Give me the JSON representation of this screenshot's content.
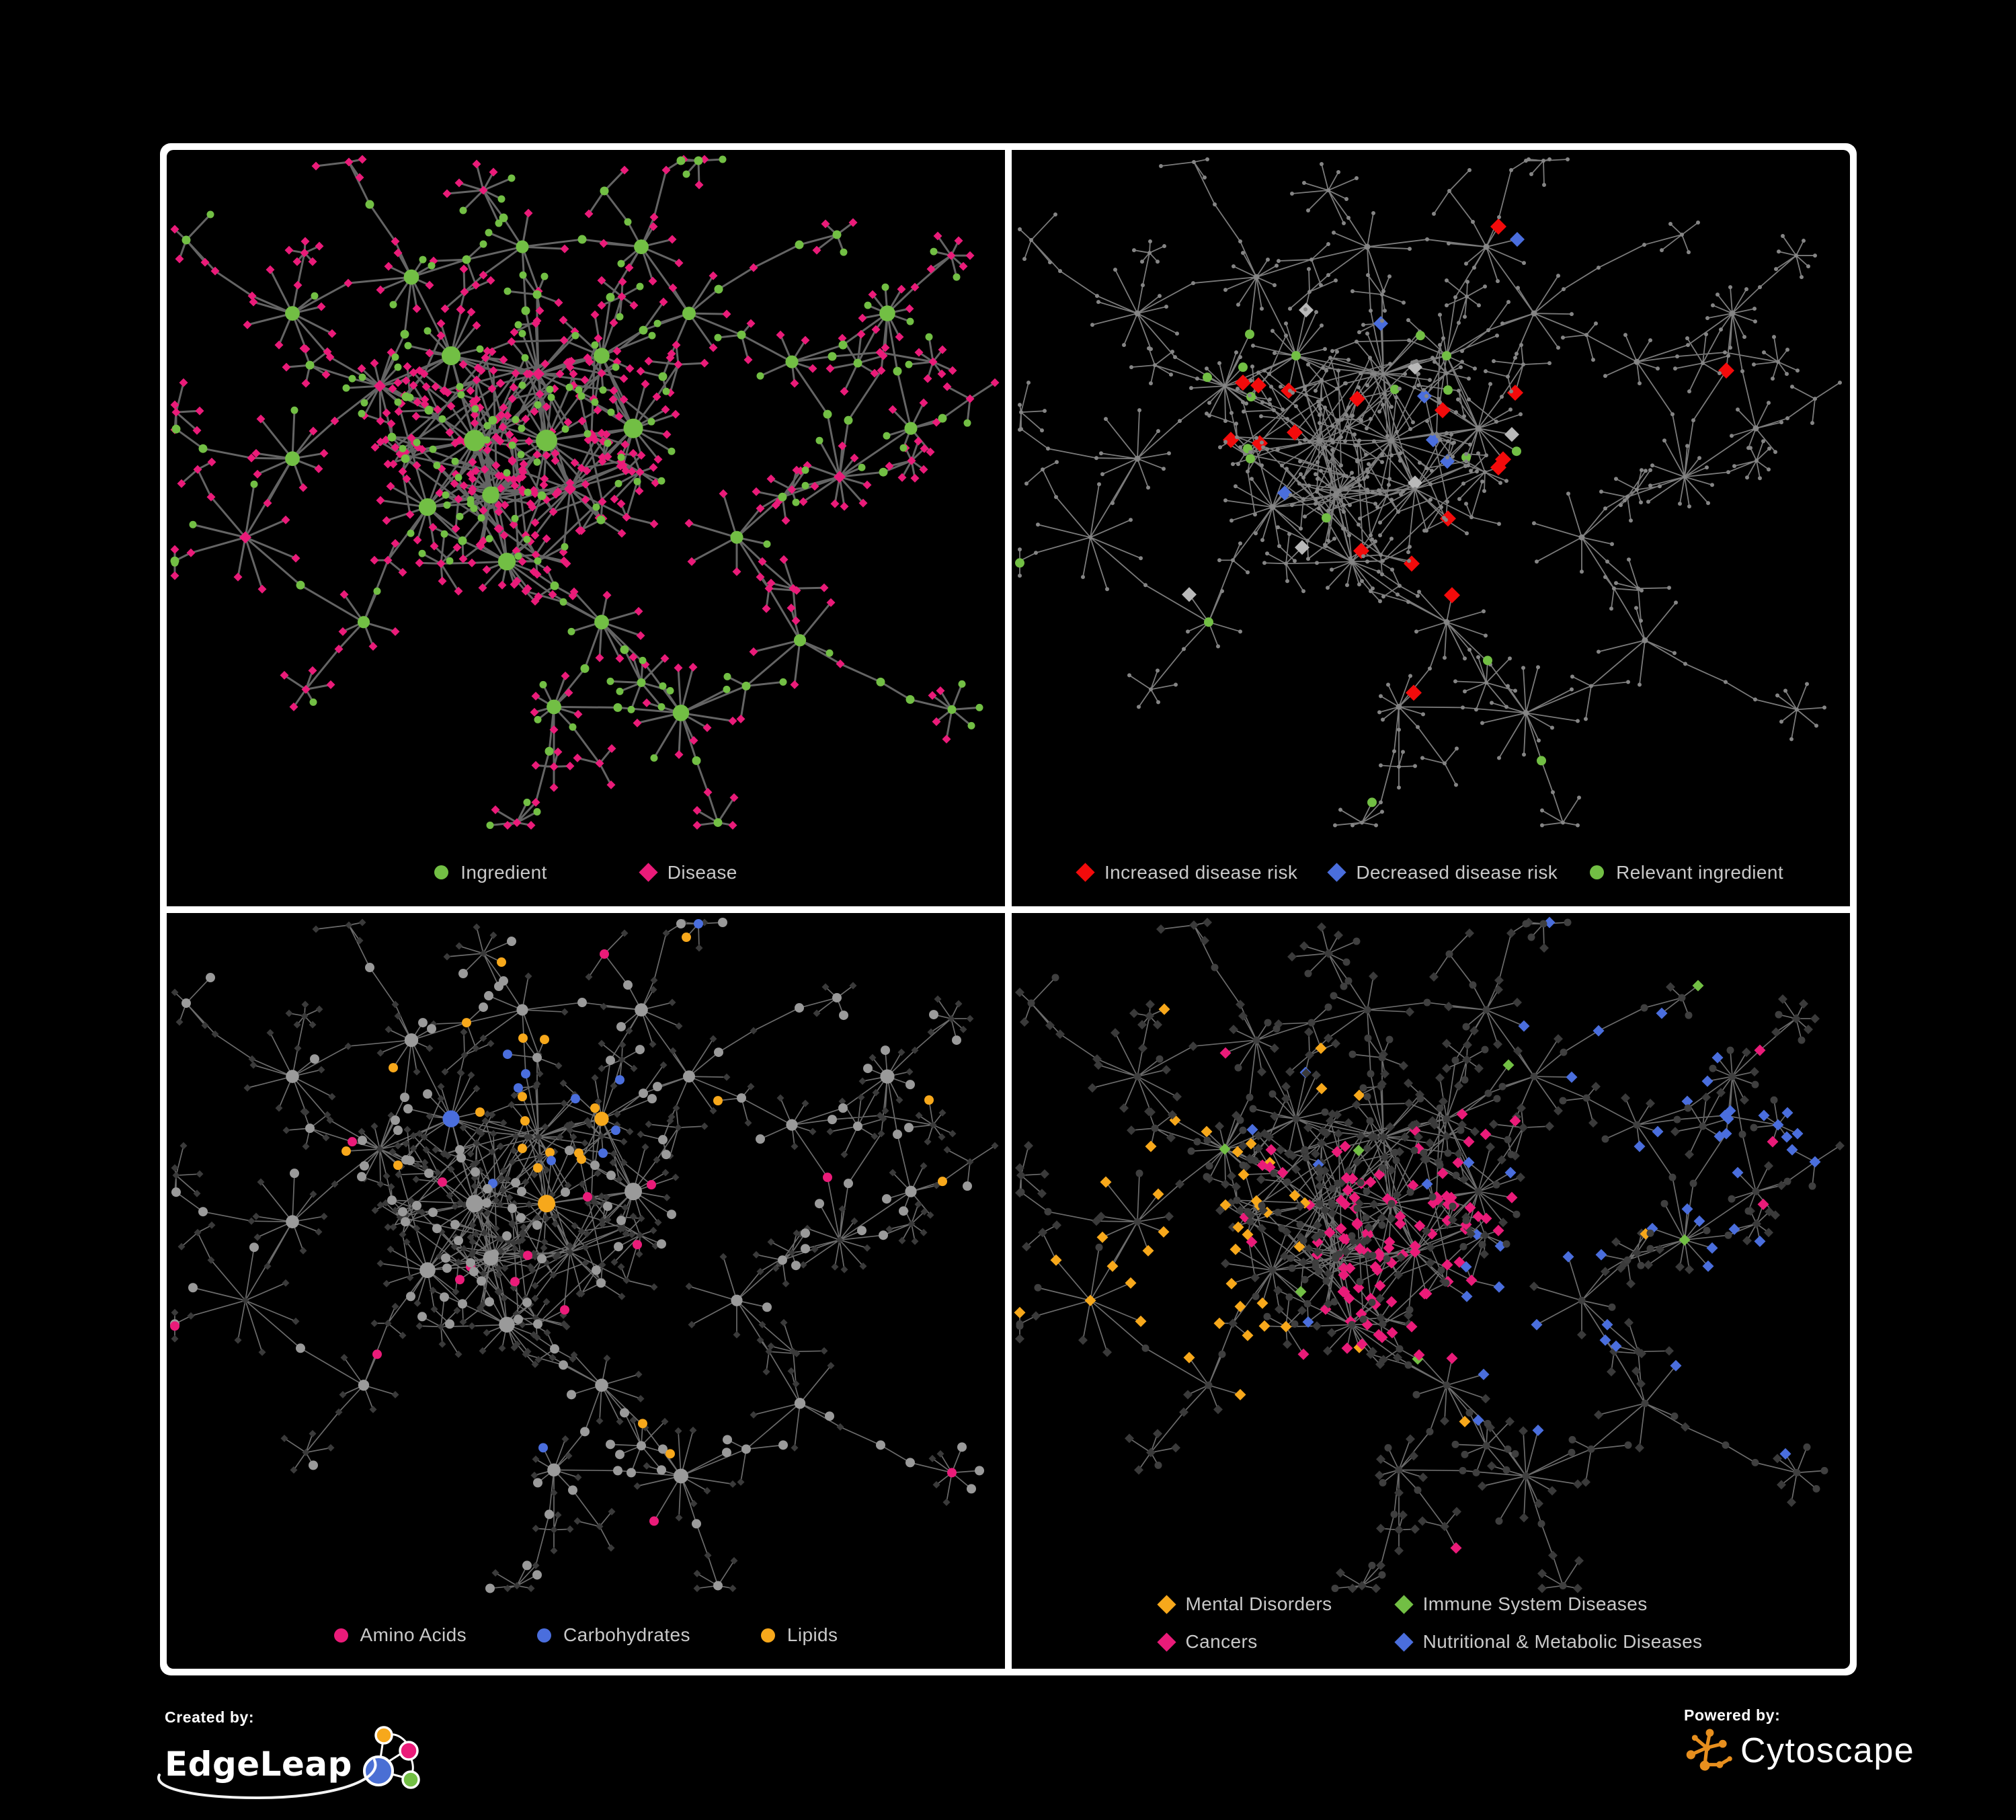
{
  "figure": {
    "background": "#000000",
    "frame_color": "#ffffff",
    "panel_background": "#000000"
  },
  "colors": {
    "ingredient_green": "#72bf44",
    "disease_pink": "#ea1b79",
    "risk_red": "#f30b0b",
    "risk_blue": "#4a6edd",
    "lipid_orange": "#f7a81b",
    "edge_gray": "#6d6d6d",
    "edge_light": "#b3b3b3",
    "node_gray": "#9a9a9a",
    "node_dark": "#3a3a3a",
    "dot_gray": "#858585",
    "highlight_gray": "#b9b9b9",
    "legend_text": "#c9c9c9",
    "edgeleap_blue": "#4a6fd4",
    "cytoscape_orange": "#e78f1e",
    "white": "#ffffff"
  },
  "panels": [
    {
      "id": "ingredient-disease",
      "legend": [
        {
          "label": "Ingredient",
          "shape": "circle",
          "color": "#72bf44"
        },
        {
          "label": "Disease",
          "shape": "diamond",
          "color": "#ea1b79"
        }
      ]
    },
    {
      "id": "disease-risk",
      "legend": [
        {
          "label": "Increased disease risk",
          "shape": "diamond",
          "color": "#f30b0b"
        },
        {
          "label": "Decreased disease risk",
          "shape": "diamond",
          "color": "#4a6edd"
        },
        {
          "label": "Relevant ingredient",
          "shape": "circle",
          "color": "#72bf44"
        }
      ]
    },
    {
      "id": "nutrient-classes",
      "legend": [
        {
          "label": "Amino Acids",
          "shape": "circle",
          "color": "#ea1b79"
        },
        {
          "label": "Carbohydrates",
          "shape": "circle",
          "color": "#4a6edd"
        },
        {
          "label": "Lipids",
          "shape": "circle",
          "color": "#f7a81b"
        }
      ]
    },
    {
      "id": "disease-classes",
      "legend": [
        {
          "label": "Mental Disorders",
          "shape": "diamond",
          "color": "#f7a81b"
        },
        {
          "label": "Immune System Diseases",
          "shape": "diamond",
          "color": "#72bf44"
        },
        {
          "label": "Cancers",
          "shape": "diamond",
          "color": "#ea1b79"
        },
        {
          "label": "Nutritional & Metabolic Diseases",
          "shape": "diamond",
          "color": "#4a6edd"
        }
      ]
    }
  ],
  "network": {
    "type": "node-link-graph",
    "node_shapes": {
      "circle": "Ingredient",
      "diamond": "Disease"
    }
  },
  "branding": {
    "created_by_label": "Created by:",
    "edgeleap_name": "EdgeLeap",
    "powered_by_label": "Powered by:",
    "cytoscape_name": "Cytoscape"
  }
}
